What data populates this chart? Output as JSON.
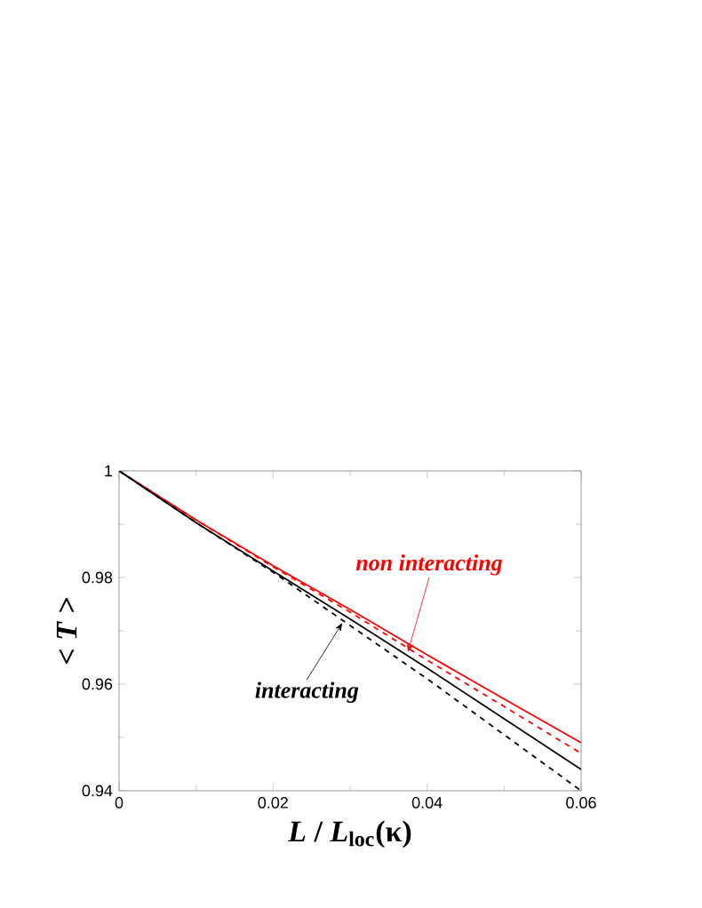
{
  "chart_data": {
    "type": "line",
    "xlabel": "*L* / *L*$_{loc}$(κ)",
    "ylabel": "< *T* >",
    "x": [
      0,
      0.01,
      0.02,
      0.03,
      0.04,
      0.05,
      0.06
    ],
    "series": [
      {
        "color": "#ff0000",
        "line_style": "solid",
        "values": [
          1,
          0.9908,
          0.9822,
          0.974,
          0.9655,
          0.9572,
          0.949
        ]
      },
      {
        "color": "#ff0000",
        "line_style": "dashed",
        "values": [
          1,
          0.9908,
          0.982,
          0.9735,
          0.9645,
          0.9558,
          0.947
        ]
      },
      {
        "color": "#000000",
        "line_style": "solid",
        "values": [
          1,
          0.9903,
          0.9812,
          0.9722,
          0.963,
          0.9535,
          0.944
        ]
      },
      {
        "color": "#000000",
        "line_style": "dashed",
        "values": [
          1,
          0.9903,
          0.981,
          0.971,
          0.961,
          0.9505,
          0.94
        ]
      }
    ],
    "annotations": [
      {
        "text": "non interacting",
        "x": 0.0375,
        "y": 0.966
      },
      {
        "text": "interacting",
        "x": 0.029,
        "y": 0.9715
      }
    ],
    "xlim": [
      0,
      0.06
    ],
    "ylim": [
      0.94,
      1
    ],
    "xticks": [
      0,
      0.02,
      0.04,
      0.06
    ],
    "yticks": [
      0.94,
      0.96,
      0.98,
      1
    ],
    "grid": false,
    "marker": "none"
  }
}
